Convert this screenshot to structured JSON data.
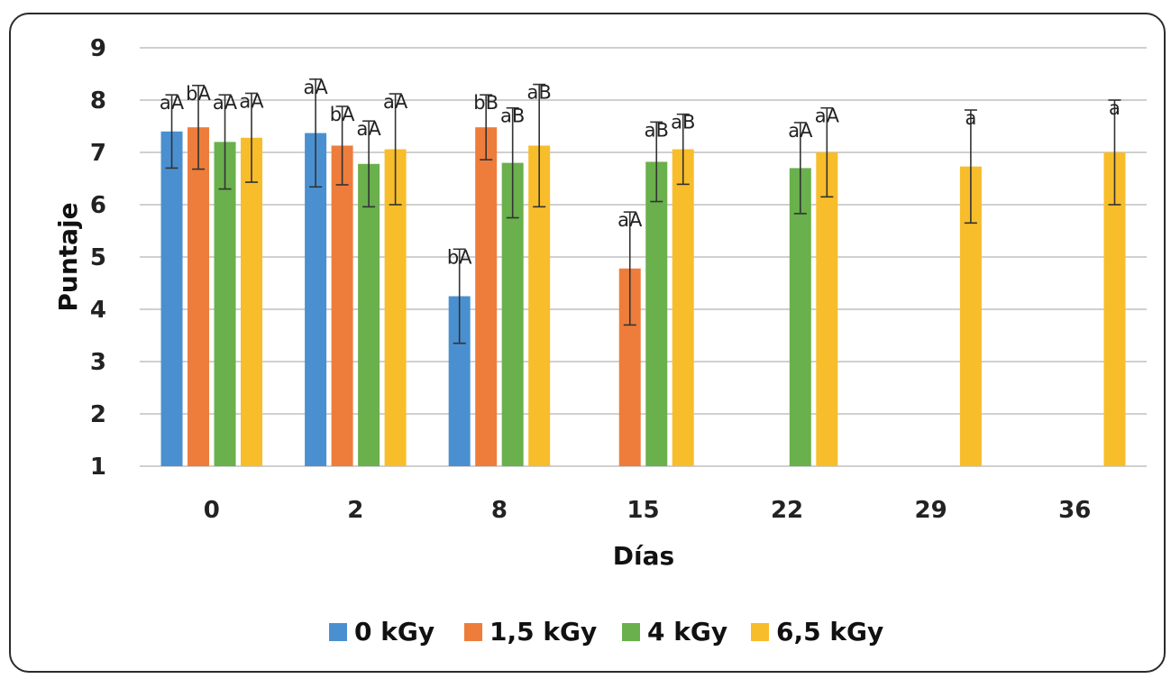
{
  "chart_data": {
    "type": "bar",
    "xlabel": "Días",
    "ylabel": "Puntaje",
    "ylim": [
      1,
      9
    ],
    "yticks": [
      1,
      2,
      3,
      4,
      5,
      6,
      7,
      8,
      9
    ],
    "grid": true,
    "legend_position": "bottom",
    "categories": [
      "0",
      "2",
      "8",
      "15",
      "22",
      "29",
      "36"
    ],
    "series": [
      {
        "name": "0 kGy",
        "color": "#4a90d0",
        "values": [
          7.4,
          7.37,
          4.25,
          null,
          null,
          null,
          null
        ],
        "errors": [
          0.7,
          1.03,
          0.9,
          null,
          null,
          null,
          null
        ],
        "labels": [
          "aA",
          "aA",
          "bA",
          "",
          "",
          "",
          ""
        ]
      },
      {
        "name": "1,5 kGy",
        "color": "#ee7d3b",
        "values": [
          7.48,
          7.13,
          7.48,
          4.78,
          null,
          null,
          null
        ],
        "errors": [
          0.8,
          0.75,
          0.62,
          1.08,
          null,
          null,
          null
        ],
        "labels": [
          "bA",
          "bA",
          "bB",
          "aA",
          "",
          "",
          ""
        ]
      },
      {
        "name": "4 kGy",
        "color": "#6ab04c",
        "values": [
          7.2,
          6.78,
          6.8,
          6.82,
          6.7,
          null,
          null
        ],
        "errors": [
          0.9,
          0.82,
          1.05,
          0.76,
          0.87,
          null,
          null
        ],
        "labels": [
          "aA",
          "aA",
          "aB",
          "aB",
          "aA",
          "",
          ""
        ]
      },
      {
        "name": "6,5 kGy",
        "color": "#f8bd2a",
        "values": [
          7.28,
          7.06,
          7.13,
          7.06,
          7.0,
          6.73,
          7.0
        ],
        "errors": [
          0.85,
          1.06,
          1.17,
          0.67,
          0.85,
          1.08,
          1.0
        ],
        "labels": [
          "aA",
          "aA",
          "aB",
          "aB",
          "aA",
          "a",
          "a"
        ]
      }
    ]
  }
}
